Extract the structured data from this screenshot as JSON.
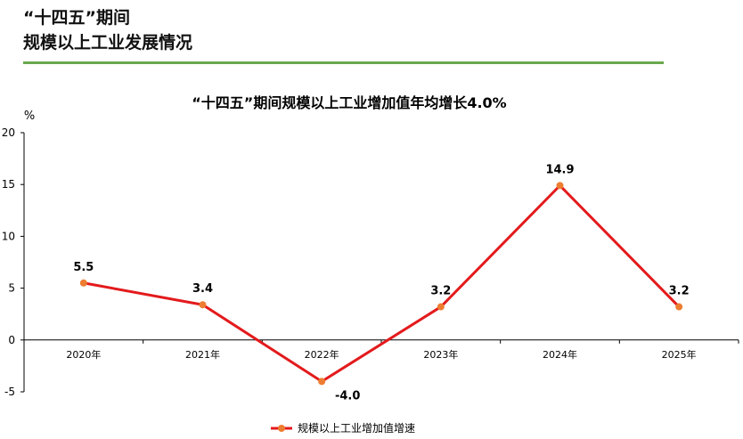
{
  "page": {
    "heading_line1": "“十四五”期间",
    "heading_line2": "规模以上工业发展情况"
  },
  "colors": {
    "accent_rule": "#6aa84f",
    "line": "#e31a1c",
    "marker": "#ed7d31"
  },
  "chart_data": {
    "type": "line",
    "title": "“十四五”期间规模以上工业增加值年均增长4.0%",
    "y_unit": "%",
    "categories": [
      "2020年",
      "2021年",
      "2022年",
      "2023年",
      "2024年",
      "2025年"
    ],
    "series": [
      {
        "name": "规模以上工业增加值增速",
        "values": [
          5.5,
          3.4,
          -4.0,
          3.2,
          14.9,
          3.2
        ],
        "labels": [
          "5.5",
          "3.4",
          "-4.0",
          "3.2",
          "14.9",
          "3.2"
        ]
      }
    ],
    "ylim": [
      -5,
      20
    ],
    "yticks": [
      -5,
      0,
      5,
      10,
      15,
      20
    ],
    "grid": false,
    "legend_position": "bottom"
  }
}
